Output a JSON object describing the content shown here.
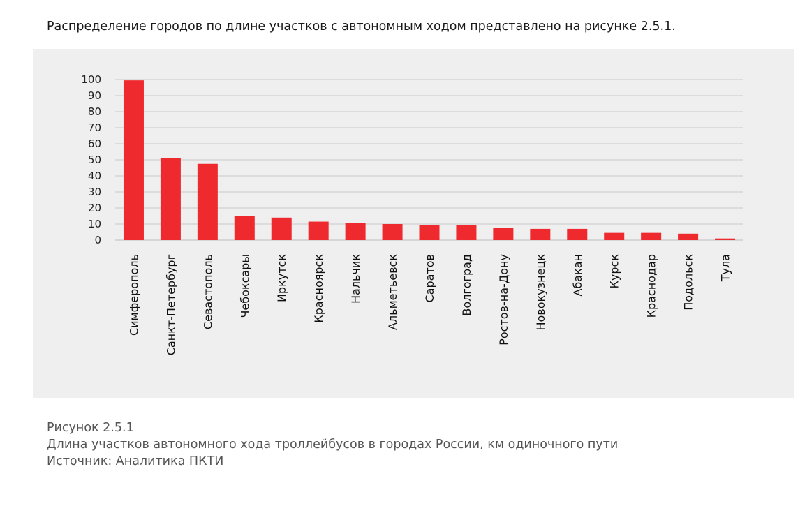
{
  "intro_text": "Распределение городов по длине участков с автономным ходом представлено на рисунке 2.5.1.",
  "figure": {
    "number": "Рисунок 2.5.1",
    "caption": "Длина участков автономного хода троллейбусов в городах России, км одиночного пути",
    "source": "Источник: Аналитика ПКТИ"
  },
  "colors": {
    "bar": "#ee2a2f",
    "panel_background": "#efefef",
    "grid": "#c8c8c8"
  },
  "chart_data": {
    "type": "bar",
    "title": "",
    "xlabel": "",
    "ylabel": "",
    "ylim": [
      0,
      100
    ],
    "yticks": [
      0,
      10,
      20,
      30,
      40,
      50,
      60,
      70,
      80,
      90,
      100
    ],
    "grid": true,
    "legend": "none",
    "categories": [
      "Симферополь",
      "Санкт-Петербург",
      "Севастополь",
      "Чебоксары",
      "Иркутск",
      "Красноярск",
      "Нальчик",
      "Альметьевск",
      "Саратов",
      "Волгоград",
      "Ростов-на-Дону",
      "Новокузнецк",
      "Абакан",
      "Курск",
      "Краснодар",
      "Подольск",
      "Тула"
    ],
    "values": [
      99.5,
      51,
      47.5,
      15,
      14,
      11.5,
      10.5,
      10,
      9.5,
      9.5,
      7.5,
      7,
      7,
      4.5,
      4.5,
      4,
      1
    ]
  }
}
